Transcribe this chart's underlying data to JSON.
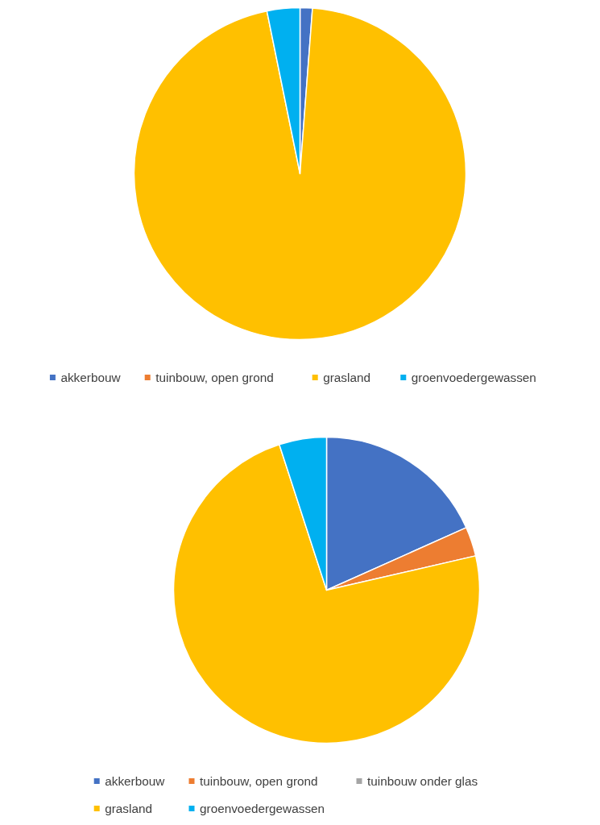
{
  "chart_data": [
    {
      "type": "pie",
      "categories": [
        "akkerbouw",
        "tuinbouw, open grond",
        "grasland",
        "groenvoedergewassen"
      ],
      "values": [
        1.2,
        0,
        95.6,
        3.2
      ],
      "colors": [
        "#4472c4",
        "#ed7d31",
        "#ffc000",
        "#00b0f0"
      ],
      "legend": "bottom"
    },
    {
      "type": "pie",
      "categories": [
        "akkerbouw",
        "tuinbouw, open grond",
        "tuinbouw onder glas",
        "grasland",
        "groenvoedergewassen"
      ],
      "values": [
        18.3,
        3.1,
        0,
        73.6,
        5.0
      ],
      "colors": [
        "#4472c4",
        "#ed7d31",
        "#a5a5a5",
        "#ffc000",
        "#00b0f0"
      ],
      "legend": "bottom"
    }
  ]
}
